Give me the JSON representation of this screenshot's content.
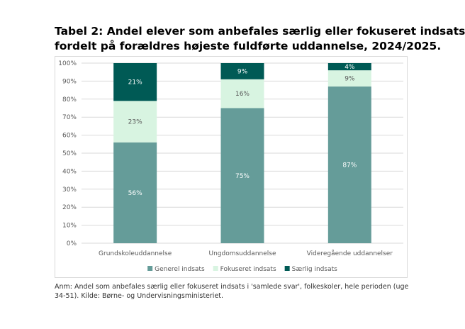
{
  "title_line1": "Tabel 2: Andel elever som anbefales særlig eller fokuseret indsats",
  "title_line2": "fordelt på forældres højeste fuldførte uddannelse, 2024/2025.",
  "note_line1": "Anm: Andel som anbefales særlig eller fokuseret indsats i 'samlede svar', folkeskoler, hele perioden (uge",
  "note_line2": "34-51). Kilde: Børne- og Undervisningsministeriet.",
  "chart_data": {
    "type": "bar",
    "stacked": true,
    "categories": [
      "Grundskoleuddannelse",
      "Ungdomsuddannelse",
      "Videregående uddannelser"
    ],
    "series": [
      {
        "name": "Generel indsats",
        "values": [
          56,
          75,
          87
        ],
        "labels": [
          "56%",
          "75%",
          "87%"
        ],
        "color": "#659c99",
        "label_color": "#ffffff"
      },
      {
        "name": "Fokuseret indsats",
        "values": [
          23,
          16,
          9
        ],
        "labels": [
          "23%",
          "16%",
          "9%"
        ],
        "color": "#d8f4e1",
        "label_color": "#595959"
      },
      {
        "name": "Særlig indsats",
        "values": [
          21,
          9,
          4
        ],
        "labels": [
          "21%",
          "9%",
          "4%"
        ],
        "color": "#005a55",
        "label_color": "#ffffff"
      }
    ],
    "ylim": [
      0,
      100
    ],
    "yticks": [
      0,
      10,
      20,
      30,
      40,
      50,
      60,
      70,
      80,
      90,
      100
    ],
    "ytick_labels": [
      "0%",
      "10%",
      "20%",
      "30%",
      "40%",
      "50%",
      "60%",
      "70%",
      "80%",
      "90%",
      "100%"
    ],
    "legend_position": "bottom",
    "grid": true
  }
}
